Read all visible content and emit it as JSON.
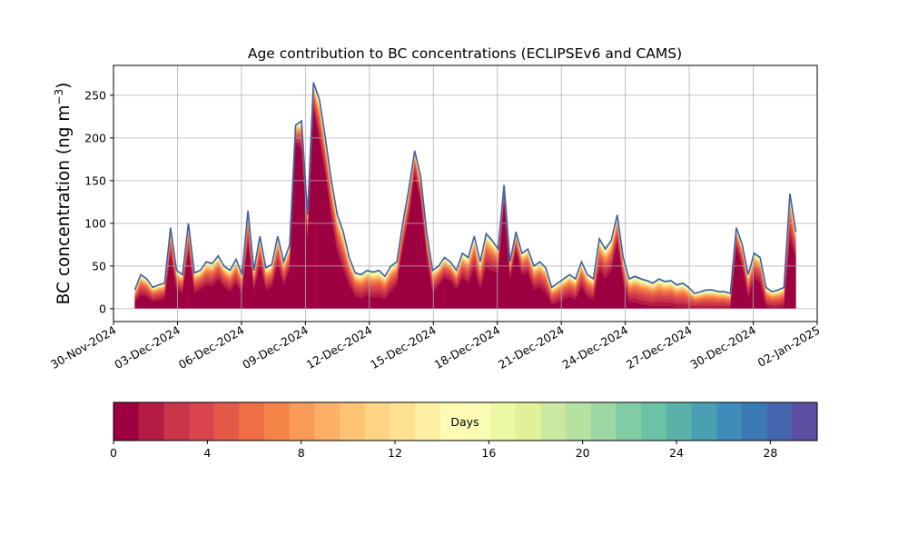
{
  "chart_data": {
    "type": "area",
    "stacked": true,
    "title": "Age contribution to BC concentrations (ECLIPSEv6 and CAMS)",
    "ylabel_main": "BC concentration (ng m",
    "ylabel_sup": "−3",
    "ylabel_close": ")",
    "xlabel": "",
    "grid": true,
    "x_start": "2024-12-01",
    "x_end": "2025-01-01",
    "xlim": [
      "2024-11-30",
      "2025-01-02"
    ],
    "ylim": [
      -15,
      285
    ],
    "y_ticks": [
      0,
      50,
      100,
      150,
      200,
      250
    ],
    "x_ticks": [
      {
        "date": "2024-11-30",
        "label": "30-Nov-2024"
      },
      {
        "date": "2024-12-03",
        "label": "03-Dec-2024"
      },
      {
        "date": "2024-12-06",
        "label": "06-Dec-2024"
      },
      {
        "date": "2024-12-09",
        "label": "09-Dec-2024"
      },
      {
        "date": "2024-12-12",
        "label": "12-Dec-2024"
      },
      {
        "date": "2024-12-15",
        "label": "15-Dec-2024"
      },
      {
        "date": "2024-12-18",
        "label": "18-Dec-2024"
      },
      {
        "date": "2024-12-21",
        "label": "21-Dec-2024"
      },
      {
        "date": "2024-12-24",
        "label": "24-Dec-2024"
      },
      {
        "date": "2024-12-27",
        "label": "27-Dec-2024"
      },
      {
        "date": "2024-12-30",
        "label": "30-Dec-2024"
      },
      {
        "date": "2025-01-02",
        "label": "02-Jan-2025"
      }
    ],
    "total": [
      22,
      40,
      35,
      25,
      28,
      30,
      95,
      45,
      40,
      100,
      42,
      45,
      55,
      53,
      62,
      50,
      45,
      58,
      40,
      115,
      45,
      85,
      48,
      52,
      85,
      55,
      75,
      215,
      220,
      110,
      265,
      245,
      200,
      150,
      110,
      90,
      60,
      42,
      40,
      45,
      43,
      45,
      38,
      50,
      55,
      100,
      140,
      185,
      155,
      90,
      45,
      50,
      60,
      55,
      45,
      65,
      60,
      85,
      55,
      88,
      80,
      70,
      145,
      55,
      90,
      65,
      70,
      50,
      55,
      48,
      25,
      30,
      35,
      40,
      35,
      55,
      40,
      35,
      82,
      70,
      80,
      110,
      60,
      35,
      38,
      35,
      33,
      30,
      35,
      32,
      33,
      28,
      30,
      25,
      18,
      20,
      22,
      22,
      20,
      20,
      18,
      95,
      75,
      40,
      65,
      60,
      25,
      20,
      22,
      25,
      135,
      90
    ],
    "fresh_fraction": [
      0.35,
      0.4,
      0.4,
      0.35,
      0.35,
      0.4,
      0.65,
      0.5,
      0.45,
      0.65,
      0.45,
      0.5,
      0.5,
      0.5,
      0.55,
      0.5,
      0.45,
      0.5,
      0.45,
      0.65,
      0.45,
      0.6,
      0.45,
      0.5,
      0.6,
      0.5,
      0.6,
      0.9,
      0.85,
      0.7,
      0.88,
      0.8,
      0.78,
      0.7,
      0.6,
      0.5,
      0.45,
      0.35,
      0.3,
      0.35,
      0.3,
      0.3,
      0.3,
      0.4,
      0.5,
      0.7,
      0.75,
      0.85,
      0.8,
      0.65,
      0.4,
      0.55,
      0.6,
      0.6,
      0.5,
      0.55,
      0.5,
      0.55,
      0.4,
      0.55,
      0.55,
      0.6,
      0.85,
      0.6,
      0.75,
      0.6,
      0.6,
      0.45,
      0.45,
      0.4,
      0.2,
      0.25,
      0.3,
      0.35,
      0.3,
      0.45,
      0.35,
      0.3,
      0.55,
      0.5,
      0.55,
      0.7,
      0.5,
      0.2,
      0.2,
      0.15,
      0.12,
      0.1,
      0.1,
      0.08,
      0.1,
      0.05,
      0.05,
      0.02,
      0.01,
      0.01,
      0.01,
      0.01,
      0.01,
      0.01,
      0.01,
      0.75,
      0.65,
      0.3,
      0.55,
      0.5,
      0.1,
      0.05,
      0.05,
      0.1,
      0.6,
      0.65
    ],
    "legend": "none"
  },
  "colorbar": {
    "label": "Days",
    "min": 0,
    "max": 30,
    "ticks": [
      0,
      4,
      8,
      12,
      16,
      20,
      24,
      28
    ],
    "colors": [
      "#9e0142",
      "#b51c45",
      "#c93549",
      "#d9444d",
      "#e45a49",
      "#ef6e45",
      "#f58547",
      "#f99b56",
      "#fcb065",
      "#fdc474",
      "#fed484",
      "#fee292",
      "#ffefa3",
      "#fffbb5",
      "#f8fcb4",
      "#edf8a3",
      "#dff299",
      "#cae99e",
      "#b5e1a2",
      "#9cd7a4",
      "#82cca5",
      "#6bc2a5",
      "#59b1aa",
      "#4a9fb2",
      "#3d8cb9",
      "#3b79b4",
      "#4566ae",
      "#5e4fa2"
    ]
  }
}
